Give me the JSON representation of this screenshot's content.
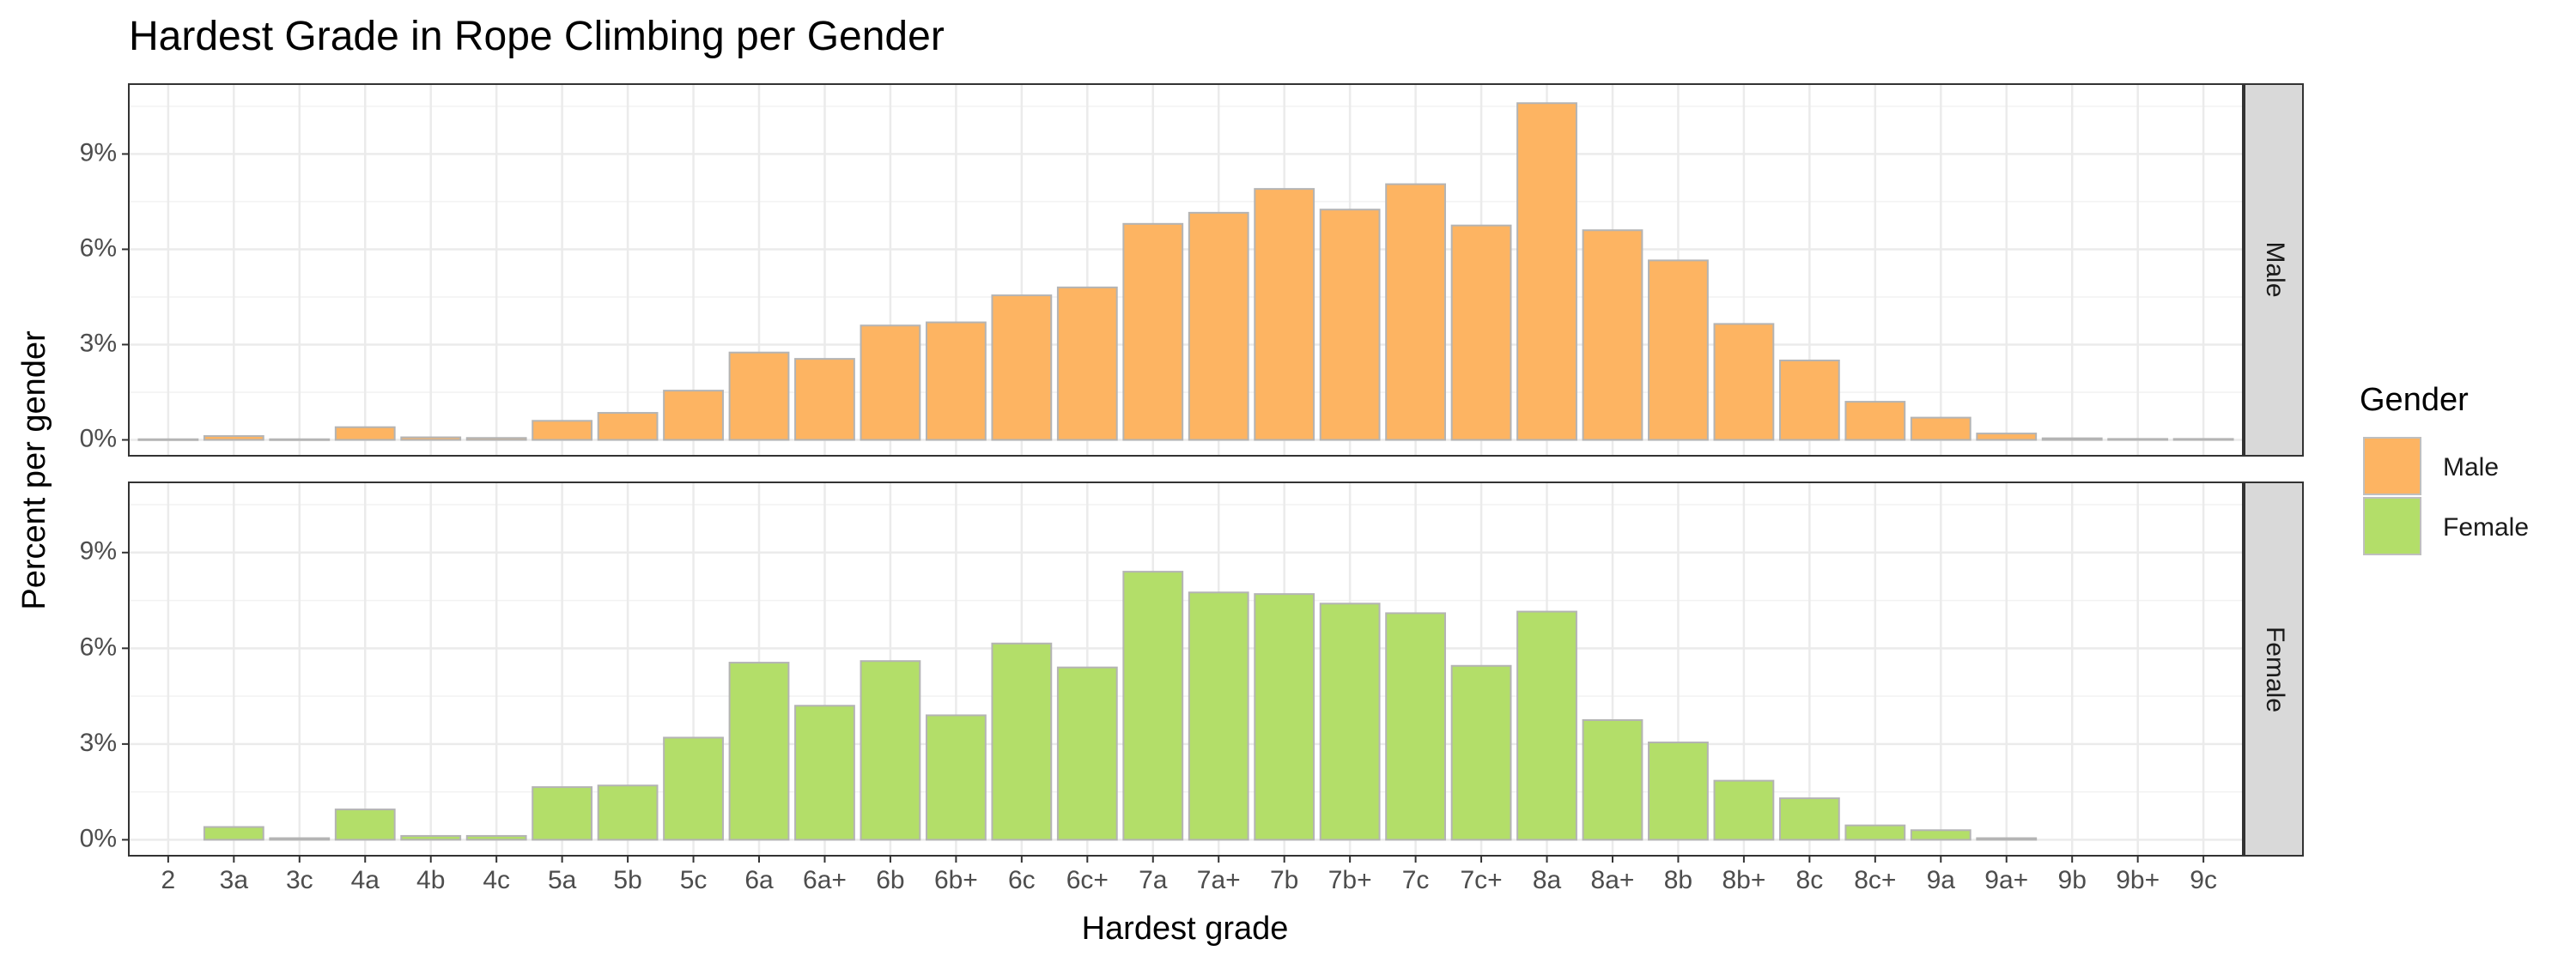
{
  "chart_data": {
    "type": "bar",
    "title": "Hardest Grade in Rope Climbing per Gender",
    "xlabel": "Hardest grade",
    "ylabel": "Percent per gender",
    "ylim": [
      -0.5,
      11.2
    ],
    "y_ticks": [
      0,
      3,
      6,
      9
    ],
    "y_tick_labels": [
      "0%",
      "3%",
      "6%",
      "9%"
    ],
    "grid": true,
    "legend": {
      "title": "Gender",
      "position": "right"
    },
    "categories": [
      "2",
      "3a",
      "3c",
      "4a",
      "4b",
      "4c",
      "5a",
      "5b",
      "5c",
      "6a",
      "6a+",
      "6b",
      "6b+",
      "6c",
      "6c+",
      "7a",
      "7a+",
      "7b",
      "7b+",
      "7c",
      "7c+",
      "8a",
      "8a+",
      "8b",
      "8b+",
      "8c",
      "8c+",
      "9a",
      "9a+",
      "9b",
      "9b+",
      "9c"
    ],
    "series": [
      {
        "name": "Male",
        "color": "#fdb462",
        "values": [
          0.02,
          0.12,
          0.02,
          0.4,
          0.08,
          0.06,
          0.6,
          0.85,
          1.55,
          2.75,
          2.55,
          3.6,
          3.7,
          4.55,
          4.8,
          6.8,
          7.15,
          7.9,
          7.25,
          8.05,
          6.75,
          10.6,
          6.6,
          5.65,
          3.65,
          2.5,
          1.2,
          0.7,
          0.2,
          0.05,
          0.03,
          0.03
        ]
      },
      {
        "name": "Female",
        "color": "#b3de69",
        "values": [
          null,
          0.4,
          0.05,
          0.95,
          0.12,
          0.12,
          1.65,
          1.7,
          3.2,
          5.55,
          4.2,
          5.6,
          3.9,
          6.15,
          5.4,
          8.4,
          7.75,
          7.7,
          7.4,
          7.1,
          5.45,
          7.15,
          3.75,
          3.05,
          1.85,
          1.3,
          0.45,
          0.3,
          0.05,
          null,
          null,
          null
        ]
      }
    ]
  }
}
